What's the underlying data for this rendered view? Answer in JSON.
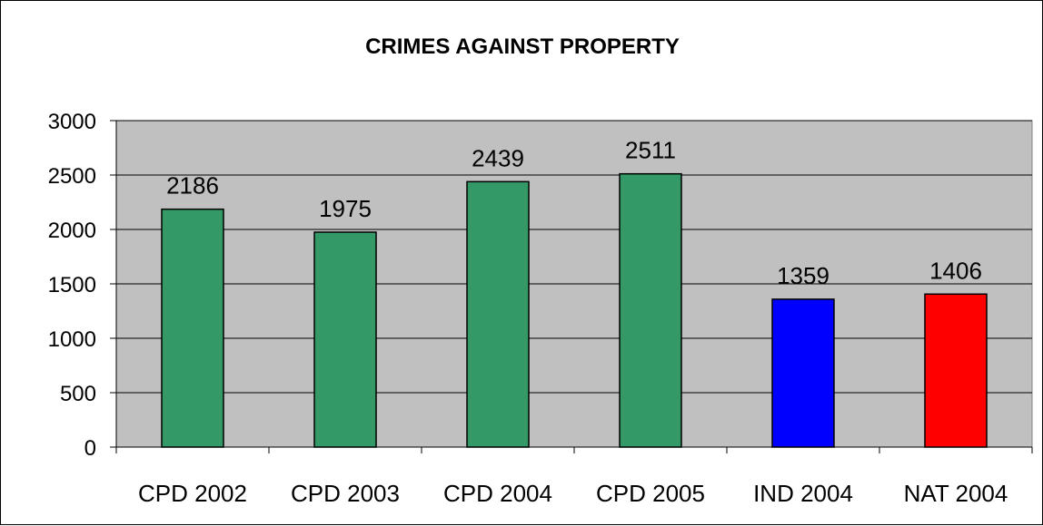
{
  "chart_data": {
    "type": "bar",
    "title": "CRIMES AGAINST PROPERTY",
    "xlabel": "",
    "ylabel": "",
    "categories": [
      "CPD 2002",
      "CPD 2003",
      "CPD 2004",
      "CPD 2005",
      "IND 2004",
      "NAT 2004"
    ],
    "values": [
      2186,
      1975,
      2439,
      2511,
      1359,
      1406
    ],
    "data_labels": [
      "2186",
      "1975",
      "2439",
      "2511",
      "1359",
      "1406"
    ],
    "bar_colors": [
      "#339966",
      "#339966",
      "#339966",
      "#339966",
      "#0000ff",
      "#ff0000"
    ],
    "ylim": [
      0,
      3000
    ],
    "yticks": [
      0,
      500,
      1000,
      1500,
      2000,
      2500,
      3000
    ],
    "grid": true,
    "legend": "none",
    "plot_background": "#c0c0c0"
  }
}
